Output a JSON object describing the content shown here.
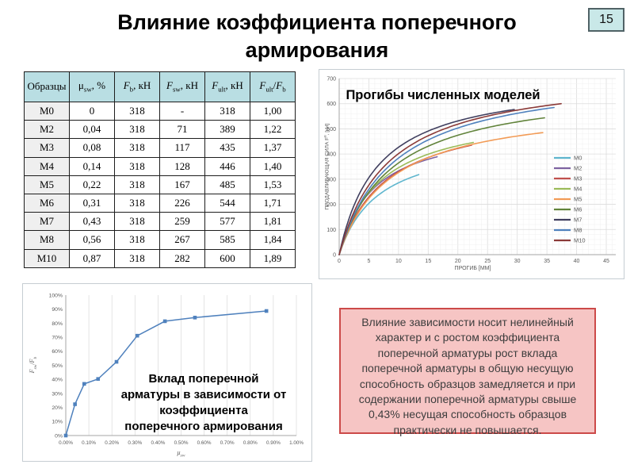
{
  "slide": {
    "title_lines": [
      "Влияние коэффициента поперечного",
      "армирования"
    ],
    "page_number": "15"
  },
  "table": {
    "columns": [
      "Образцы",
      "μ_{sw}, %",
      "*F*_{b}, кН",
      "*F*_{sw}, кН",
      "*F*_{ult}, кН",
      "*F*_{ult}/*F*_{b}"
    ],
    "rows": [
      [
        "M0",
        "0",
        "318",
        "-",
        "318",
        "1,00"
      ],
      [
        "M2",
        "0,04",
        "318",
        "71",
        "389",
        "1,22"
      ],
      [
        "M3",
        "0,08",
        "318",
        "117",
        "435",
        "1,37"
      ],
      [
        "M4",
        "0,14",
        "318",
        "128",
        "446",
        "1,40"
      ],
      [
        "M5",
        "0,22",
        "318",
        "167",
        "485",
        "1,53"
      ],
      [
        "M6",
        "0,31",
        "318",
        "226",
        "544",
        "1,71"
      ],
      [
        "M7",
        "0,43",
        "318",
        "259",
        "577",
        "1,81"
      ],
      [
        "M8",
        "0,56",
        "318",
        "267",
        "585",
        "1,84"
      ],
      [
        "M10",
        "0,87",
        "318",
        "282",
        "600",
        "1,89"
      ]
    ]
  },
  "chart_data": [
    {
      "id": "deflections",
      "type": "line",
      "title": "Прогибы численных моделей",
      "xlabel": "ПРОГИБ [ММ]",
      "ylabel": "ПРОДАВЛИВАЮЩАЯ СИЛА F^{u}, [кН]",
      "xlim": [
        0,
        45
      ],
      "ylim": [
        0,
        700
      ],
      "xticks": [
        0,
        5,
        10,
        15,
        20,
        25,
        30,
        35,
        40,
        45
      ],
      "yticks": [
        0,
        100,
        200,
        300,
        400,
        500,
        600,
        700
      ],
      "grid": "fine grid, minor x every 1 mm, minor y every 20 kN",
      "legend_position": "right-inside",
      "curve_model": "F(x) = F_ult * t*(1+k)/(t+k), t = x/end_deflection",
      "series": [
        {
          "name": "M0",
          "color": "#5fb6ce",
          "end_deflection_mm": 13.4,
          "ultimate_force_kn": 318,
          "shape_k": 0.5
        },
        {
          "name": "M2",
          "color": "#7e63a1",
          "end_deflection_mm": 16.5,
          "ultimate_force_kn": 389,
          "shape_k": 0.35
        },
        {
          "name": "M3",
          "color": "#c0504d",
          "end_deflection_mm": 22.3,
          "ultimate_force_kn": 435,
          "shape_k": 0.35
        },
        {
          "name": "M4",
          "color": "#9bbb59",
          "end_deflection_mm": 22.6,
          "ultimate_force_kn": 446,
          "shape_k": 0.3
        },
        {
          "name": "M5",
          "color": "#f29b56",
          "end_deflection_mm": 34.3,
          "ultimate_force_kn": 485,
          "shape_k": 0.25
        },
        {
          "name": "M6",
          "color": "#61833b",
          "end_deflection_mm": 34.6,
          "ultimate_force_kn": 544,
          "shape_k": 0.25
        },
        {
          "name": "M7",
          "color": "#403f5f",
          "end_deflection_mm": 29.5,
          "ultimate_force_kn": 577,
          "shape_k": 0.22
        },
        {
          "name": "M8",
          "color": "#4f81bd",
          "end_deflection_mm": 36.2,
          "ultimate_force_kn": 585,
          "shape_k": 0.25
        },
        {
          "name": "M10",
          "color": "#8b3a38",
          "end_deflection_mm": 37.4,
          "ultimate_force_kn": 600,
          "shape_k": 0.22
        }
      ]
    },
    {
      "id": "sw-contribution",
      "type": "line",
      "title_lines": [
        "Вклад поперечной",
        "арматуры в зависимости от",
        "коэффициента",
        "поперечного армирования"
      ],
      "xlabel": "μ_{sw}",
      "ylabel": "F_{sw}/F_{b}",
      "x_percent": [
        0,
        0.04,
        0.08,
        0.14,
        0.22,
        0.31,
        0.43,
        0.56,
        0.87
      ],
      "y_percent": [
        0,
        22.3,
        36.8,
        40.3,
        52.5,
        71.1,
        81.4,
        84.0,
        88.7
      ],
      "xlim_percent": [
        0,
        1.0
      ],
      "ylim_percent": [
        0,
        100
      ],
      "xticks_labels": [
        "0.00%",
        "0.10%",
        "0.20%",
        "0.30%",
        "0.40%",
        "0.50%",
        "0.60%",
        "0.70%",
        "0.80%",
        "0.90%",
        "1.00%"
      ],
      "yticks_labels": [
        "0%",
        "10%",
        "20%",
        "30%",
        "40%",
        "50%",
        "60%",
        "70%",
        "80%",
        "90%",
        "100%"
      ],
      "color": "#4f81bd",
      "marker": "square",
      "grid": "vertical only"
    }
  ],
  "note_box": {
    "text": "Влияние зависимости носит нелинейный характер и с ростом коэффициента поперечной арматуры рост вклада поперечной арматуры в общую несущую способность образцов замедляется и при содержании поперечной арматуры свыше 0,43% несущая способность образцов практически не повышается.",
    "background": "#f6c5c4",
    "border_color": "#cc4a49"
  }
}
